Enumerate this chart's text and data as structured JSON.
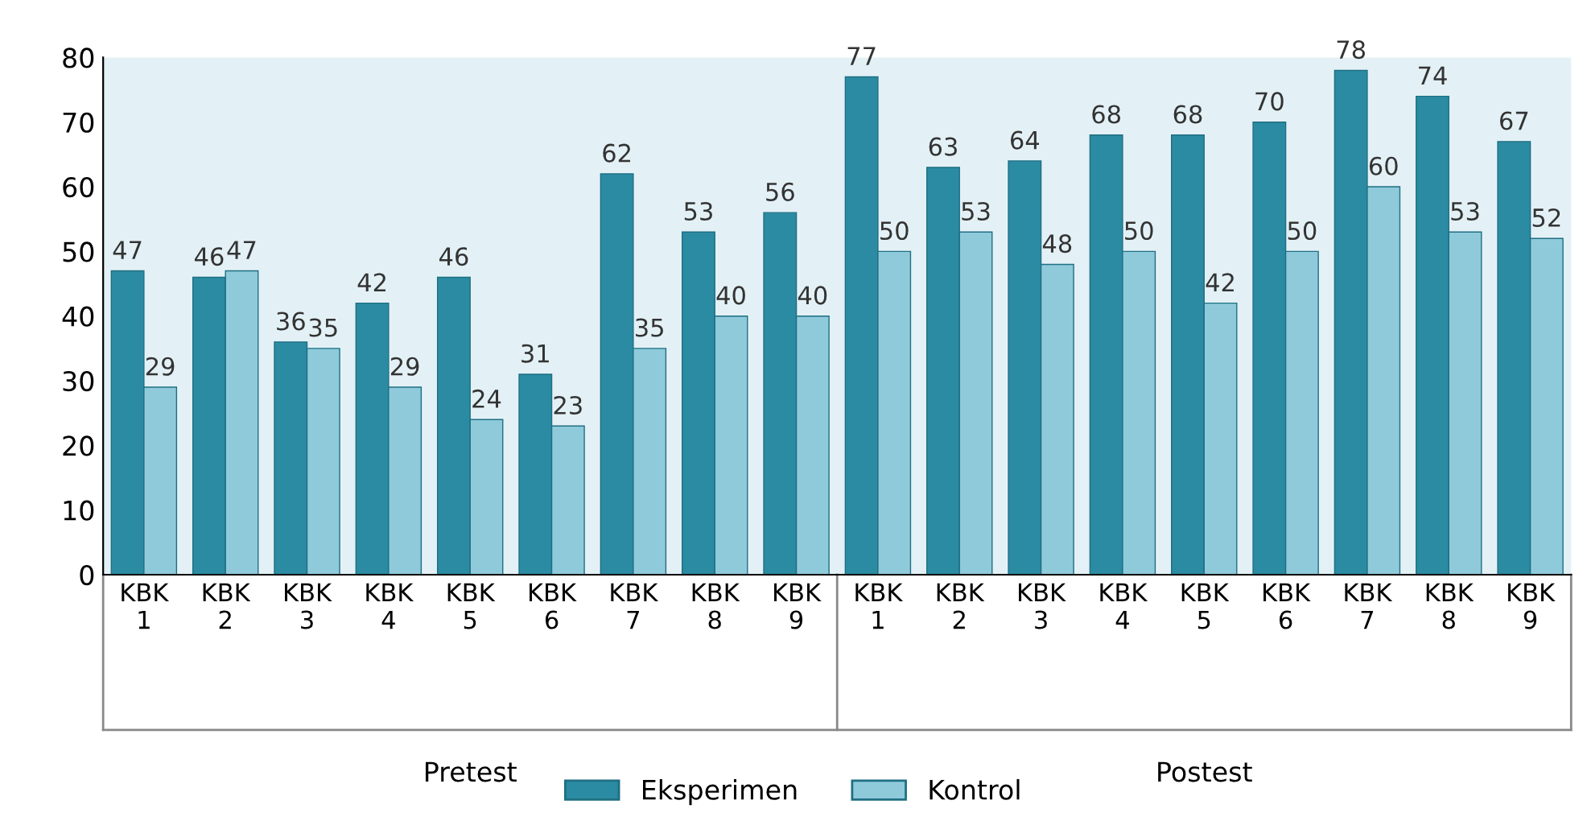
{
  "chart_data": {
    "type": "bar",
    "categories": [
      "KBK\n1",
      "KBK\n2",
      "KBK\n3",
      "KBK\n4",
      "KBK\n5",
      "KBK\n6",
      "KBK\n7",
      "KBK\n8",
      "KBK\n9",
      "KBK\n1",
      "KBK\n2",
      "KBK\n3",
      "KBK\n4",
      "KBK\n5",
      "KBK\n6",
      "KBK\n7",
      "KBK\n8",
      "KBK\n9"
    ],
    "series": [
      {
        "name": "Eksperimen",
        "color": "#2b8ba3",
        "values": [
          47,
          46,
          36,
          42,
          46,
          31,
          62,
          53,
          56,
          77,
          63,
          64,
          68,
          68,
          70,
          78,
          74,
          67
        ]
      },
      {
        "name": "Kontrol",
        "color": "#8fcadb",
        "values": [
          29,
          47,
          35,
          29,
          24,
          23,
          35,
          40,
          40,
          50,
          53,
          48,
          50,
          42,
          50,
          60,
          53,
          52
        ]
      }
    ],
    "annotations": [
      "Pretest",
      "Postest"
    ],
    "ylim": [
      0,
      80
    ],
    "yticks": [
      0,
      10,
      20,
      30,
      40,
      50,
      60,
      70,
      80
    ],
    "data_labels": true,
    "grid": false,
    "legend": "bottom"
  }
}
